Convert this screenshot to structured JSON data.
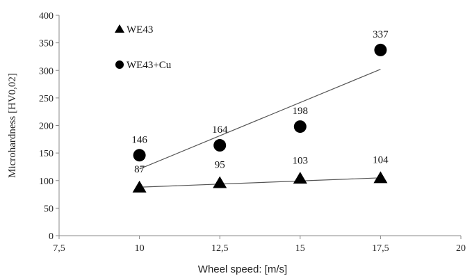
{
  "chart_data": {
    "type": "scatter",
    "xlabel": "Wheel speed: [m/s]",
    "ylabel": "Microhardness [HV0,02]",
    "xlim": [
      7.5,
      20
    ],
    "ylim": [
      0,
      400
    ],
    "x_ticks": [
      "7,5",
      "10",
      "12,5",
      "15",
      "17,5",
      "20"
    ],
    "x_tick_values": [
      7.5,
      10,
      12.5,
      15,
      17.5,
      20
    ],
    "y_ticks": [
      "0",
      "50",
      "100",
      "150",
      "200",
      "250",
      "300",
      "350",
      "400"
    ],
    "y_tick_values": [
      0,
      50,
      100,
      150,
      200,
      250,
      300,
      350,
      400
    ],
    "grid": false,
    "legend_position": "top-left",
    "series": [
      {
        "name": "WE43",
        "marker": "triangle",
        "x": [
          10,
          12.5,
          15,
          17.5
        ],
        "y": [
          87,
          95,
          103,
          104
        ],
        "labels": [
          "87",
          "95",
          "103",
          "104"
        ],
        "trendline": [
          [
            10,
            88
          ],
          [
            17.5,
            105
          ]
        ]
      },
      {
        "name": "WE43+Cu",
        "marker": "circle",
        "x": [
          10,
          12.5,
          15,
          17.5
        ],
        "y": [
          146,
          164,
          198,
          337
        ],
        "labels": [
          "146",
          "164",
          "198",
          "337"
        ],
        "trendline": [
          [
            10,
            121
          ],
          [
            17.5,
            302
          ]
        ]
      }
    ],
    "colors": {
      "marker": "#000000",
      "trendline": "#555555",
      "axis": "#888888"
    }
  }
}
